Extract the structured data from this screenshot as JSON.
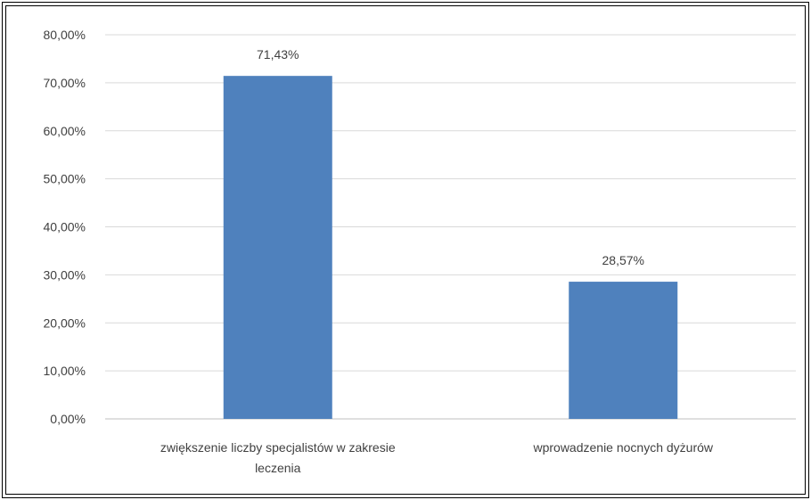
{
  "chart_data": {
    "type": "bar",
    "categories": [
      [
        "zwiększenie liczby specjalistów w zakresie",
        "leczenia"
      ],
      [
        "wprowadzenie nocnych dyżurów"
      ]
    ],
    "values": [
      71.43,
      28.57
    ],
    "data_labels": [
      "71,43%",
      "28,57%"
    ],
    "ylim": [
      0,
      80
    ],
    "y_ticks": [
      0,
      10,
      20,
      30,
      40,
      50,
      60,
      70,
      80
    ],
    "y_tick_labels": [
      "0,00%",
      "10,00%",
      "20,00%",
      "30,00%",
      "40,00%",
      "50,00%",
      "60,00%",
      "70,00%",
      "80,00%"
    ],
    "grid": true,
    "legend": "none",
    "colors": {
      "bar": "#4F81BD",
      "grid": "#D9D9D9",
      "axis": "#BFBFBF",
      "text": "#404040"
    }
  }
}
